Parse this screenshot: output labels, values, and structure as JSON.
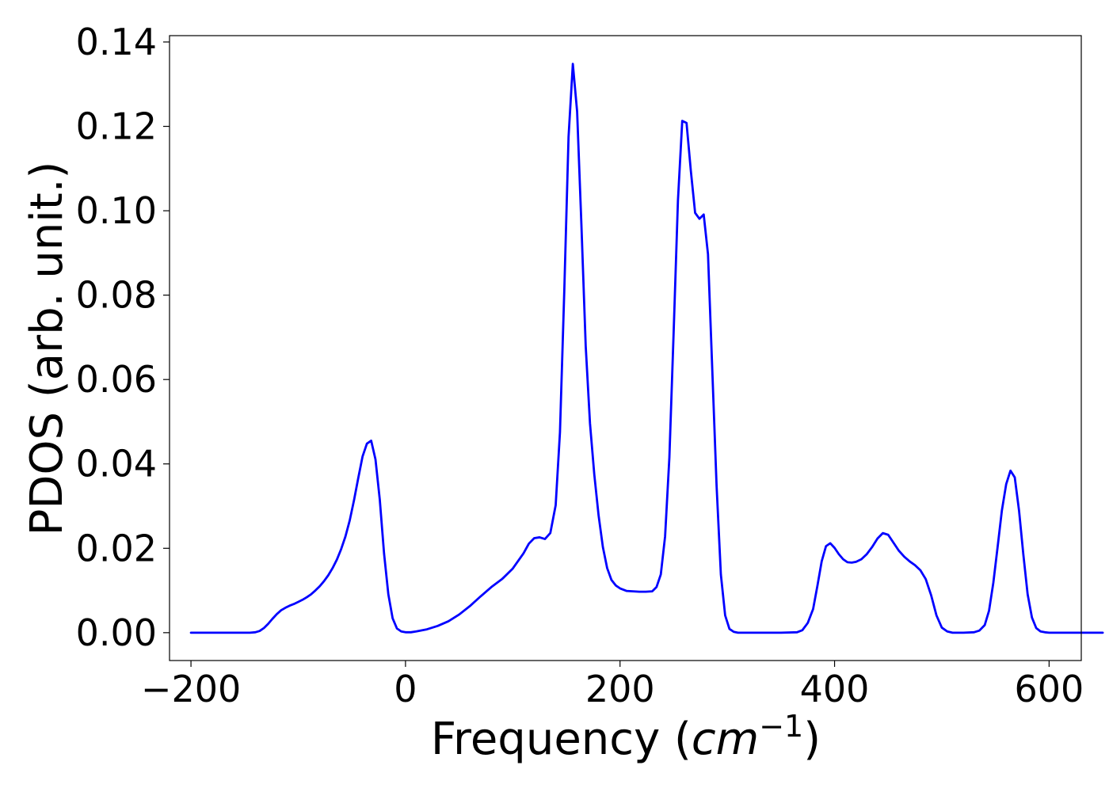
{
  "chart_data": {
    "type": "line",
    "title": "",
    "xlabel": {
      "prefix": "Frequency (",
      "var": "cm",
      "exp": "−1",
      "suffix": ")"
    },
    "ylabel": "PDOS (arb. unit.)",
    "xlim": [
      -220,
      630
    ],
    "ylim": [
      -0.0066,
      0.1415
    ],
    "xticks": [
      -200,
      0,
      200,
      400,
      600
    ],
    "xtick_labels": [
      "−200",
      "0",
      "200",
      "400",
      "600"
    ],
    "yticks": [
      0.0,
      0.02,
      0.04,
      0.06,
      0.08,
      0.1,
      0.12,
      0.14
    ],
    "ytick_labels": [
      "0.00",
      "0.02",
      "0.04",
      "0.06",
      "0.08",
      "0.10",
      "0.12",
      "0.14"
    ],
    "grid": false,
    "line_color": "#0000ff",
    "series": [
      {
        "x": [
          -200,
          -180,
          -160,
          -145,
          -140,
          -136,
          -132,
          -128,
          -124,
          -120,
          -116,
          -112,
          -108,
          -104,
          -100,
          -96,
          -92,
          -88,
          -84,
          -80,
          -76,
          -72,
          -68,
          -64,
          -60,
          -56,
          -52,
          -48,
          -44,
          -40,
          -36,
          -32,
          -28,
          -24,
          -20,
          -16,
          -12,
          -8,
          -4,
          0,
          5,
          10,
          20,
          30,
          40,
          50,
          60,
          70,
          80,
          90,
          100,
          110,
          115,
          120,
          125,
          130,
          135,
          140,
          144,
          148,
          152,
          156,
          160,
          164,
          168,
          172,
          176,
          180,
          184,
          188,
          192,
          196,
          200,
          206,
          212,
          218,
          224,
          230,
          234,
          238,
          242,
          246,
          250,
          254,
          258,
          262,
          266,
          270,
          274,
          278,
          282,
          286,
          290,
          294,
          298,
          302,
          306,
          310,
          315,
          330,
          350,
          365,
          370,
          375,
          380,
          384,
          388,
          392,
          396,
          400,
          404,
          408,
          412,
          416,
          420,
          425,
          430,
          435,
          440,
          445,
          450,
          455,
          460,
          465,
          470,
          475,
          480,
          485,
          490,
          495,
          500,
          505,
          510,
          520,
          530,
          535,
          540,
          544,
          548,
          552,
          556,
          560,
          564,
          568,
          572,
          576,
          580,
          584,
          588,
          592,
          596,
          600,
          610,
          630,
          650
        ],
        "y": [
          0.0,
          0.0,
          0.0,
          0.0,
          0.0001,
          0.0004,
          0.0011,
          0.0021,
          0.0033,
          0.0044,
          0.0053,
          0.0059,
          0.0064,
          0.0068,
          0.0073,
          0.0078,
          0.0084,
          0.0091,
          0.01,
          0.011,
          0.0122,
          0.0136,
          0.0153,
          0.0173,
          0.0198,
          0.0228,
          0.0266,
          0.0314,
          0.0367,
          0.0418,
          0.0448,
          0.0455,
          0.0411,
          0.0316,
          0.0188,
          0.0091,
          0.0034,
          0.001,
          0.0003,
          0.0001,
          0.0001,
          0.0003,
          0.0008,
          0.0016,
          0.0027,
          0.0043,
          0.0063,
          0.0086,
          0.0108,
          0.0127,
          0.0152,
          0.0188,
          0.0211,
          0.0224,
          0.0226,
          0.0222,
          0.0236,
          0.0302,
          0.0475,
          0.0808,
          0.1175,
          0.1348,
          0.1235,
          0.0966,
          0.0679,
          0.0496,
          0.0375,
          0.0278,
          0.0203,
          0.0153,
          0.0125,
          0.0112,
          0.0105,
          0.0099,
          0.0098,
          0.0097,
          0.0097,
          0.0098,
          0.0108,
          0.0138,
          0.0228,
          0.0415,
          0.0714,
          0.1025,
          0.1213,
          0.1208,
          0.1095,
          0.0995,
          0.0981,
          0.0991,
          0.0897,
          0.0623,
          0.0349,
          0.0138,
          0.0041,
          0.0009,
          0.0002,
          0.0,
          0.0,
          0.0,
          0.0,
          0.0001,
          0.0006,
          0.0023,
          0.0056,
          0.0111,
          0.0169,
          0.0205,
          0.0212,
          0.0201,
          0.0186,
          0.0174,
          0.0167,
          0.0166,
          0.0168,
          0.0174,
          0.0186,
          0.0203,
          0.0223,
          0.0236,
          0.0232,
          0.0213,
          0.0194,
          0.018,
          0.0169,
          0.016,
          0.0148,
          0.0127,
          0.0089,
          0.0041,
          0.0012,
          0.0003,
          0.0,
          0.0,
          0.0001,
          0.0005,
          0.0018,
          0.0052,
          0.0118,
          0.0203,
          0.029,
          0.0352,
          0.0384,
          0.0368,
          0.0289,
          0.0185,
          0.0091,
          0.0036,
          0.0011,
          0.0003,
          0.0001,
          0.0,
          0.0,
          0.0,
          0.0
        ]
      }
    ]
  }
}
